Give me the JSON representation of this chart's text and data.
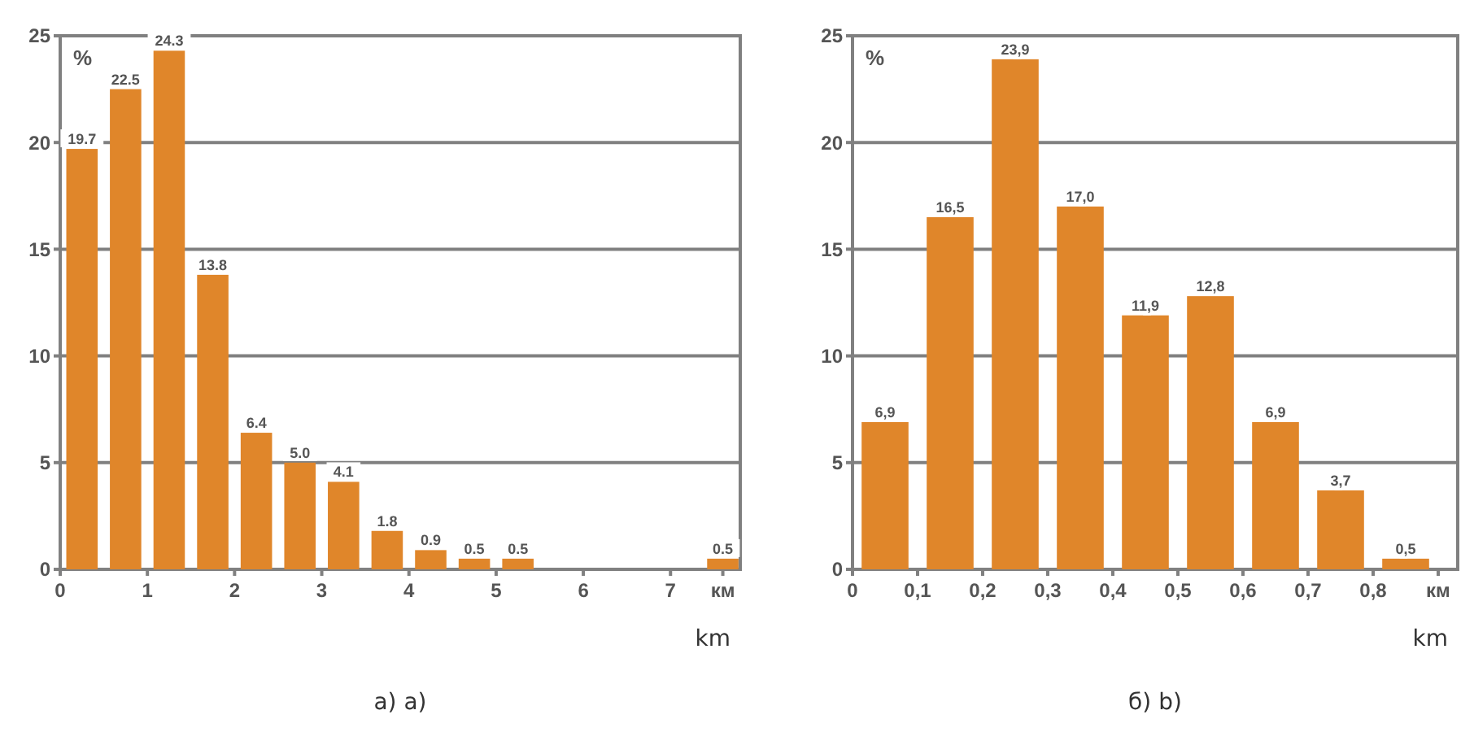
{
  "chart_data": [
    {
      "type": "bar",
      "ylabel": "%",
      "xlabel": "km",
      "annotations": [
        "а) a)"
      ],
      "x": [
        0.25,
        0.75,
        1.25,
        1.75,
        2.25,
        2.75,
        3.25,
        3.75,
        4.25,
        4.75,
        5.25,
        7.6
      ],
      "values": [
        19.7,
        22.5,
        24.3,
        13.8,
        6.4,
        5.0,
        4.1,
        1.8,
        0.9,
        0.5,
        0.5,
        0.5
      ],
      "value_labels": [
        "19.7",
        "22.5",
        "24.3",
        "13.8",
        "6.4",
        "5.0",
        "4.1",
        "1.8",
        "0.9",
        "0.5",
        "0.5",
        "0.5"
      ],
      "color": "#e0862a",
      "xlim": [
        0,
        7.8
      ],
      "xticks": [
        0,
        1,
        2,
        3,
        4,
        5,
        6,
        7,
        {
          "value": 7.6,
          "label": "км"
        }
      ],
      "ylim": [
        0,
        25
      ],
      "yticks": [
        0,
        5,
        10,
        15,
        20,
        25
      ],
      "grid": "y"
    },
    {
      "type": "bar",
      "ylabel": "%",
      "xlabel": "km",
      "annotations": [
        "б) b)"
      ],
      "x": [
        0.05,
        0.15,
        0.25,
        0.35,
        0.45,
        0.55,
        0.65,
        0.75,
        0.85
      ],
      "values": [
        6.9,
        16.5,
        23.9,
        17.0,
        11.9,
        12.8,
        6.9,
        3.7,
        0.5
      ],
      "value_labels": [
        "6,9",
        "16,5",
        "23,9",
        "17,0",
        "11,9",
        "12,8",
        "6,9",
        "3,7",
        "0,5"
      ],
      "color": "#e0862a",
      "xlim": [
        0,
        0.93
      ],
      "xticks": [
        0,
        {
          "value": 0.1,
          "label": "0,1"
        },
        {
          "value": 0.2,
          "label": "0,2"
        },
        {
          "value": 0.3,
          "label": "0,3"
        },
        {
          "value": 0.4,
          "label": "0,4"
        },
        {
          "value": 0.5,
          "label": "0,5"
        },
        {
          "value": 0.6,
          "label": "0,6"
        },
        {
          "value": 0.7,
          "label": "0,7"
        },
        {
          "value": 0.8,
          "label": "0,8"
        },
        {
          "value": 0.9,
          "label": "км"
        }
      ],
      "ylim": [
        0,
        25
      ],
      "yticks": [
        0,
        5,
        10,
        15,
        20,
        25
      ],
      "grid": "y"
    }
  ]
}
